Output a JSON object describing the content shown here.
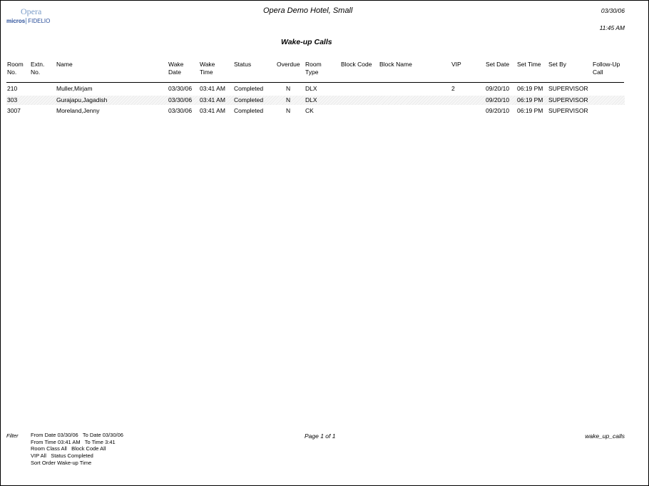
{
  "header": {
    "logo_top": "Opera",
    "logo_bottom_left": "micros",
    "logo_bottom_right": "FIDELIO",
    "hotel": "Opera Demo Hotel, Small",
    "date": "03/30/06",
    "time": "11:45 AM",
    "title": "Wake-up Calls"
  },
  "columns": [
    [
      "Room",
      "No."
    ],
    [
      "Extn.",
      "No."
    ],
    [
      "Name",
      ""
    ],
    [
      "Wake",
      "Date"
    ],
    [
      "Wake",
      "Time"
    ],
    [
      "Status",
      ""
    ],
    [
      "Overdue",
      ""
    ],
    [
      "Room",
      "Type"
    ],
    [
      "Block Code",
      ""
    ],
    [
      "Block Name",
      ""
    ],
    [
      "VIP",
      ""
    ],
    [
      "Set Date",
      ""
    ],
    [
      "Set Time",
      ""
    ],
    [
      "Set By",
      ""
    ],
    [
      "Follow-Up",
      "Call"
    ]
  ],
  "rows": [
    [
      "210",
      "",
      "Muller,Mirjam",
      "03/30/06",
      "03:41 AM",
      "Completed",
      "N",
      "DLX",
      "",
      "",
      "2",
      "09/20/10",
      "06:19 PM",
      "SUPERVISOR",
      ""
    ],
    [
      "303",
      "",
      "Gurajapu,Jagadish",
      "03/30/06",
      "03:41 AM",
      "Completed",
      "N",
      "DLX",
      "",
      "",
      "",
      "09/20/10",
      "06:19 PM",
      "SUPERVISOR",
      ""
    ],
    [
      "3007",
      "",
      "Moreland,Jenny",
      "03/30/06",
      "03:41 AM",
      "Completed",
      "N",
      "CK",
      "",
      "",
      "",
      "09/20/10",
      "06:19 PM",
      "SUPERVISOR",
      ""
    ]
  ],
  "footer": {
    "filter_label": "Filter",
    "filters": [
      "From Date 03/30/06   To Date 03/30/06",
      "From Time 03:41 AM   To Time 3:41",
      "Room Class All   Block Code All",
      "VIP All   Status Completed",
      "Sort Order Wake-up Time"
    ],
    "page": "Page 1 of 1",
    "report_name": "wake_up_calls"
  }
}
